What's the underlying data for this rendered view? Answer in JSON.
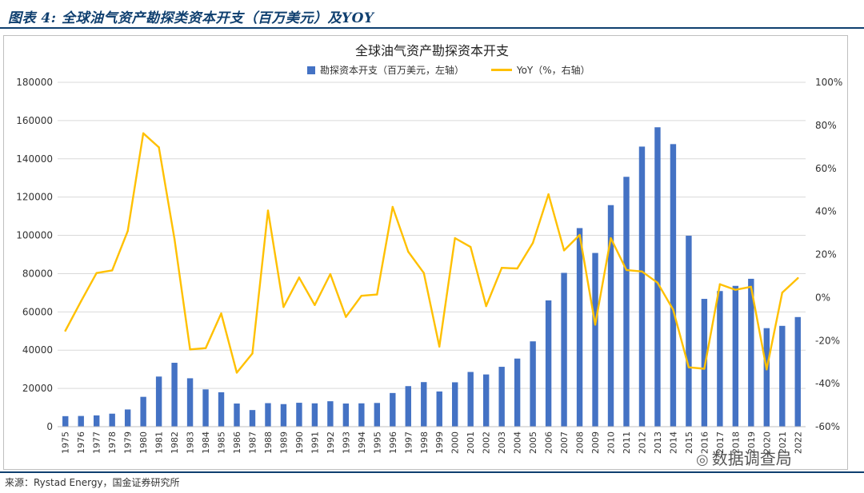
{
  "figure": {
    "label": "图表 4:  全球油气资产勘探类资本开支（百万美元）及YOY",
    "source": "来源：Rystad Energy，国金证券研究所",
    "watermark": "数据调查局",
    "watermark_icon": "wechat-icon"
  },
  "colors": {
    "bar": "#4472c4",
    "line": "#ffc000",
    "header": "#0f3f6f",
    "grid": "#d9d9d9"
  },
  "chart_data": {
    "type": "bar+line",
    "title": "全球油气资产勘探资本开支",
    "legend_position": "top-center",
    "grid": true,
    "categories": [
      "1975",
      "1976",
      "1977",
      "1978",
      "1979",
      "1980",
      "1981",
      "1982",
      "1983",
      "1984",
      "1985",
      "1986",
      "1987",
      "1988",
      "1989",
      "1990",
      "1991",
      "1992",
      "1993",
      "1994",
      "1995",
      "1996",
      "1997",
      "1998",
      "1999",
      "2000",
      "2001",
      "2002",
      "2003",
      "2004",
      "2005",
      "2006",
      "2007",
      "2008",
      "2009",
      "2010",
      "2011",
      "2012",
      "2013",
      "2014",
      "2015",
      "2016",
      "2017",
      "2018",
      "2019",
      "2020",
      "2021",
      "2022"
    ],
    "series": [
      {
        "name": "勘探资本开支（百万美元，左轴）",
        "type": "bar",
        "axis": "left",
        "values": [
          5500,
          5600,
          5900,
          6800,
          9000,
          15600,
          26200,
          33400,
          25300,
          19500,
          18000,
          12100,
          8700,
          12300,
          11800,
          12500,
          12200,
          13300,
          12100,
          12200,
          12400,
          17600,
          21200,
          23300,
          18400,
          23200,
          28600,
          27300,
          31300,
          35600,
          44600,
          66000,
          80400,
          103800,
          90800,
          115800,
          130600,
          146400,
          156500,
          147700,
          99800,
          66800,
          70900,
          73600,
          77300,
          51500,
          52700,
          57300
        ]
      },
      {
        "name": "YoY（%，右轴）",
        "type": "line",
        "axis": "right",
        "values": [
          -15.4,
          -1.8,
          11.4,
          12.6,
          30.9,
          76.3,
          69.8,
          27.2,
          -24.1,
          -23.5,
          -7.4,
          -34.9,
          -26.0,
          40.4,
          -4.4,
          9.3,
          -3.5,
          10.9,
          -9.0,
          0.8,
          1.4,
          42.1,
          21.3,
          11.4,
          -22.8,
          27.6,
          23.5,
          -4.0,
          13.8,
          13.5,
          25.4,
          48.0,
          21.9,
          29.1,
          -12.6,
          27.6,
          12.8,
          12.1,
          6.9,
          -5.6,
          -32.4,
          -33.1,
          6.2,
          3.6,
          5.0,
          -33.4,
          2.3,
          9.0
        ]
      }
    ],
    "y_left": {
      "min": 0,
      "max": 180000,
      "step": 20000,
      "ticks": [
        "0",
        "20000",
        "40000",
        "60000",
        "80000",
        "100000",
        "120000",
        "140000",
        "160000",
        "180000"
      ]
    },
    "y_right": {
      "min": -60,
      "max": 100,
      "step": 20,
      "ticks": [
        "-60%",
        "-40%",
        "-20%",
        "0%",
        "20%",
        "40%",
        "60%",
        "80%",
        "100%"
      ]
    }
  }
}
